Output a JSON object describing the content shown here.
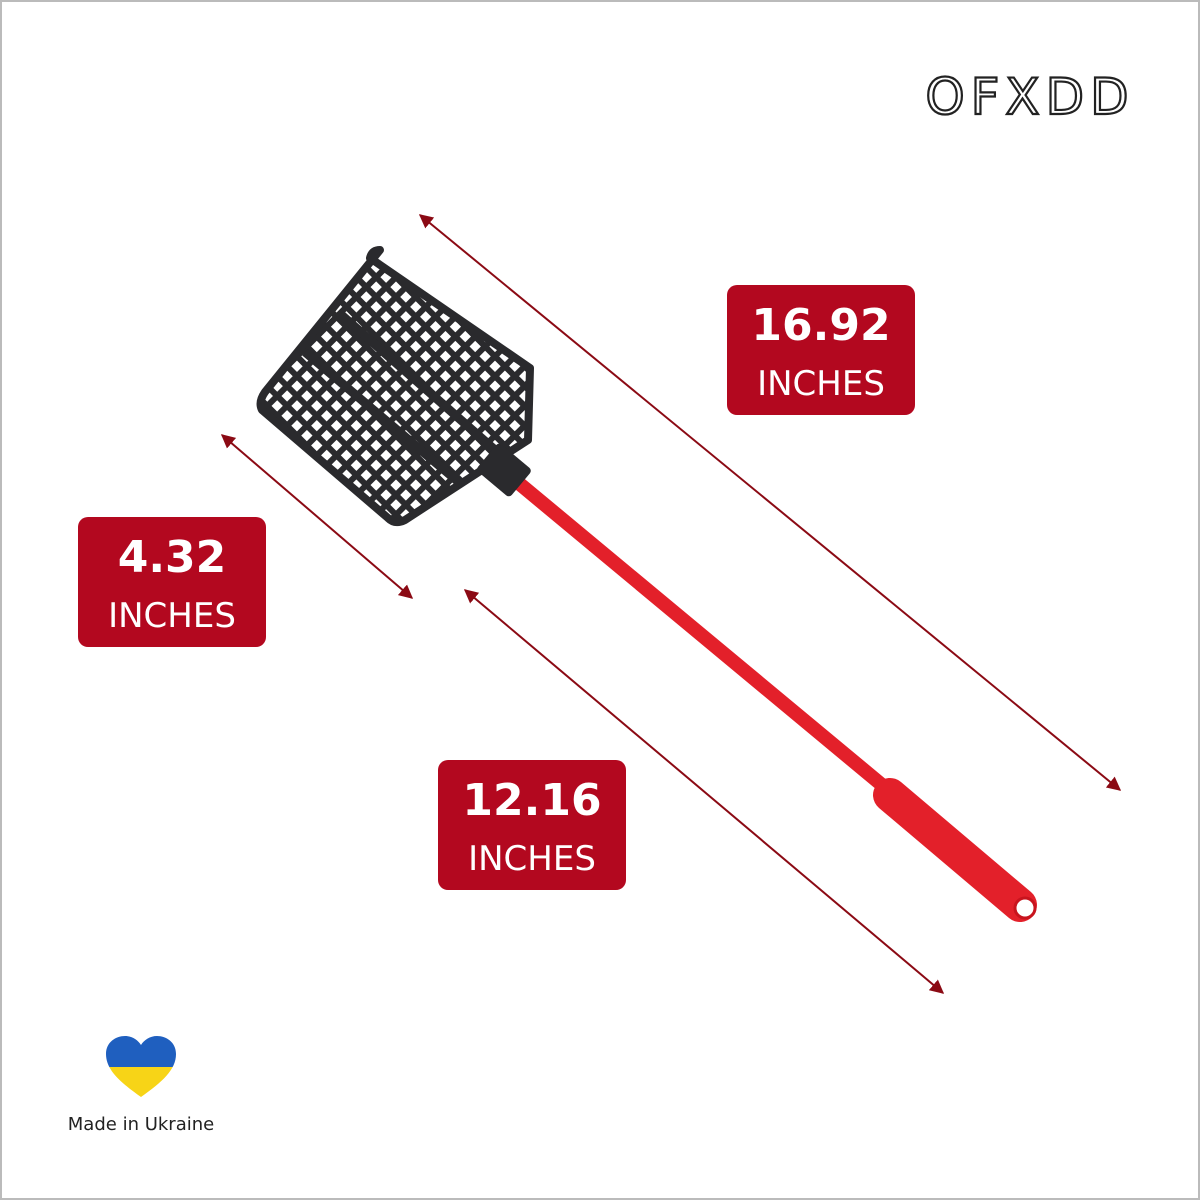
{
  "brand": "OFXDD",
  "dimensions": [
    {
      "value": "16.92",
      "unit": "INCHES"
    },
    {
      "value": "4.32",
      "unit": "INCHES"
    },
    {
      "value": "12.16",
      "unit": "INCHES"
    }
  ],
  "origin": "Made in Ukraine"
}
